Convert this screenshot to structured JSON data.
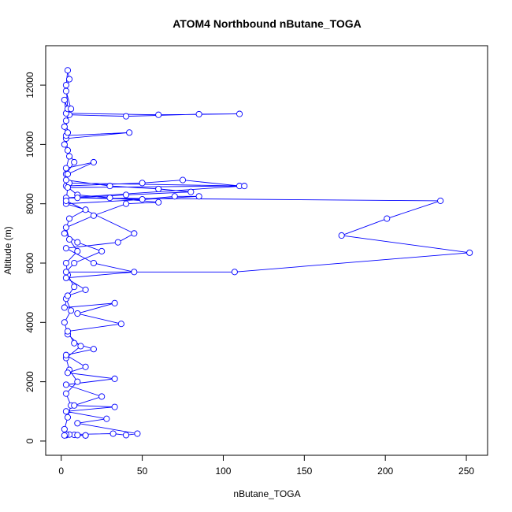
{
  "chart_data": {
    "type": "line",
    "title": "ATOM4 Northbound nButane_TOGA",
    "x_label": "nButane_TOGA",
    "y_label": "Altitude (m)",
    "color": "#0000ff",
    "markers": true,
    "xlim": [
      -9.6,
      263.1
    ],
    "ylim": [
      -480,
      13330
    ],
    "xticks": [
      0,
      50,
      100,
      150,
      200,
      250
    ],
    "yticks": [
      0,
      2000,
      4000,
      6000,
      8000,
      10000,
      12000
    ],
    "x": [
      3,
      8,
      15,
      5,
      2,
      4,
      6,
      3,
      10,
      5,
      3,
      12,
      4,
      2,
      6,
      3,
      8,
      4,
      3,
      10,
      5,
      3,
      20,
      40,
      60,
      30,
      10,
      3,
      50,
      75,
      110,
      5,
      3,
      8,
      4,
      3,
      42,
      3,
      2,
      5,
      40,
      85,
      110,
      60,
      3,
      2,
      4,
      3,
      4,
      5,
      3,
      6,
      3,
      4,
      2,
      5,
      3,
      20,
      4,
      3,
      30,
      60,
      80,
      40,
      10,
      50,
      70,
      85,
      3,
      15,
      5,
      2,
      10,
      25,
      8,
      3,
      107,
      252,
      173,
      201,
      234,
      3,
      113,
      4,
      3,
      45,
      35,
      3,
      20,
      45,
      3,
      15,
      4,
      2,
      33,
      10,
      37,
      4,
      8,
      20,
      3,
      15,
      4,
      33,
      3,
      25,
      8,
      33,
      3,
      28,
      10,
      47,
      40,
      32,
      3,
      2,
      15,
      10
    ],
    "values": [
      200,
      210,
      190,
      220,
      400,
      800,
      1200,
      1600,
      2000,
      2400,
      2800,
      3200,
      3600,
      4000,
      4400,
      4800,
      5200,
      5600,
      6000,
      6400,
      6800,
      7200,
      7600,
      8000,
      8050,
      8200,
      8300,
      8600,
      8700,
      8800,
      8600,
      8700,
      9000,
      9400,
      9800,
      10200,
      10400,
      10300,
      10600,
      11000,
      10950,
      11020,
      11030,
      11000,
      11050,
      11500,
      11200,
      12000,
      12500,
      12200,
      11800,
      11200,
      10800,
      10400,
      10000,
      9600,
      9200,
      9400,
      9000,
      8800,
      8600,
      8500,
      8400,
      8300,
      8200,
      8150,
      8250,
      8250,
      8000,
      7800,
      7500,
      7000,
      6700,
      6400,
      6000,
      5700,
      5700,
      6350,
      6930,
      7500,
      8100,
      8200,
      8600,
      8550,
      8100,
      7000,
      6700,
      6500,
      6000,
      5700,
      5500,
      5100,
      4900,
      4500,
      4650,
      4300,
      3950,
      3700,
      3300,
      3100,
      2900,
      2500,
      2300,
      2100,
      1900,
      1500,
      1200,
      1150,
      1000,
      750,
      600,
      250,
      200,
      250,
      220,
      190,
      190,
      200
    ]
  }
}
